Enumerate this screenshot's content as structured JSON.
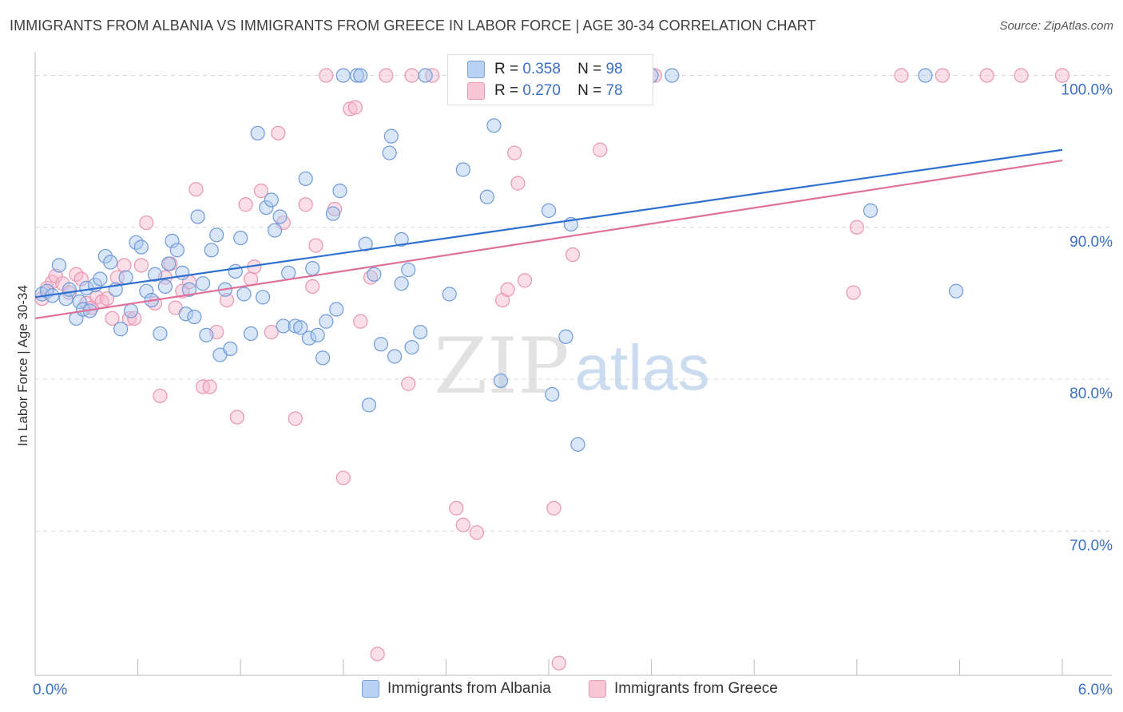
{
  "title": "IMMIGRANTS FROM ALBANIA VS IMMIGRANTS FROM GREECE IN LABOR FORCE | AGE 30-34 CORRELATION CHART",
  "source": "Source: ZipAtlas.com",
  "watermark": {
    "zip": "ZIP",
    "atlas": "atlas"
  },
  "stats": [
    {
      "r_label": "R =",
      "r_value": "0.358",
      "n_label": "N =",
      "n_value": "98"
    },
    {
      "r_label": "R =",
      "r_value": "0.270",
      "n_label": "N =",
      "n_value": "78"
    }
  ],
  "colors": {
    "albania_fill": "#a9c8f0",
    "albania_stroke": "#6f9ad8",
    "albania_line": "#2f6fd0",
    "greece_fill": "#f6b8cb",
    "greece_stroke": "#e995b1",
    "greece_line": "#e0709a",
    "axis_text": "#3a6fc8",
    "grid": "#d9d9d9"
  },
  "chart_data": {
    "type": "scatter",
    "title": "IMMIGRANTS FROM ALBANIA VS IMMIGRANTS FROM GREECE IN LABOR FORCE | AGE 30-34 CORRELATION CHART",
    "xlabel": "",
    "ylabel": "In Labor Force | Age 30-34",
    "xlim": [
      0,
      6
    ],
    "ylim": [
      60.5,
      101.5
    ],
    "x_tick_labels": [
      {
        "value": 0,
        "label": "0.0%"
      },
      {
        "value": 6,
        "label": "6.0%"
      }
    ],
    "y_tick_labels": [
      {
        "value": 70,
        "label": "70.0%"
      },
      {
        "value": 80,
        "label": "80.0%"
      },
      {
        "value": 90,
        "label": "90.0%"
      },
      {
        "value": 100,
        "label": "100.0%"
      }
    ],
    "x_minor_ticks": [
      0.6,
      1.2,
      1.8,
      2.4,
      3.0,
      3.6,
      4.2,
      4.8,
      5.4,
      6.0
    ],
    "legend": [
      "Immigrants from Albania",
      "Immigrants from Greece"
    ],
    "series": [
      {
        "name": "Immigrants from Albania",
        "trend": {
          "x": [
            0,
            6
          ],
          "y": [
            85.4,
            95.1
          ]
        },
        "points": [
          [
            0.04,
            85.6
          ],
          [
            0.07,
            85.8
          ],
          [
            0.1,
            85.5
          ],
          [
            0.14,
            87.5
          ],
          [
            0.18,
            85.3
          ],
          [
            0.2,
            85.9
          ],
          [
            0.24,
            84.0
          ],
          [
            0.26,
            85.1
          ],
          [
            0.28,
            84.6
          ],
          [
            0.3,
            86.0
          ],
          [
            0.32,
            84.5
          ],
          [
            0.35,
            86.2
          ],
          [
            0.38,
            86.6
          ],
          [
            0.41,
            88.1
          ],
          [
            0.44,
            87.7
          ],
          [
            0.47,
            85.9
          ],
          [
            0.5,
            83.3
          ],
          [
            0.53,
            86.7
          ],
          [
            0.56,
            84.5
          ],
          [
            0.59,
            89.0
          ],
          [
            0.62,
            88.7
          ],
          [
            0.65,
            85.8
          ],
          [
            0.68,
            85.2
          ],
          [
            0.7,
            86.9
          ],
          [
            0.73,
            83.0
          ],
          [
            0.76,
            86.1
          ],
          [
            0.78,
            87.6
          ],
          [
            0.8,
            89.1
          ],
          [
            0.83,
            88.5
          ],
          [
            0.86,
            87.0
          ],
          [
            0.88,
            84.3
          ],
          [
            0.9,
            85.9
          ],
          [
            0.93,
            84.1
          ],
          [
            0.95,
            90.7
          ],
          [
            0.98,
            86.3
          ],
          [
            1.0,
            82.9
          ],
          [
            1.03,
            88.5
          ],
          [
            1.06,
            89.5
          ],
          [
            1.08,
            81.6
          ],
          [
            1.11,
            85.9
          ],
          [
            1.14,
            82.0
          ],
          [
            1.17,
            87.1
          ],
          [
            1.2,
            89.3
          ],
          [
            1.22,
            85.6
          ],
          [
            1.26,
            83.0
          ],
          [
            1.3,
            96.2
          ],
          [
            1.33,
            85.4
          ],
          [
            1.35,
            91.3
          ],
          [
            1.38,
            91.8
          ],
          [
            1.4,
            89.8
          ],
          [
            1.43,
            90.7
          ],
          [
            1.45,
            83.5
          ],
          [
            1.48,
            87.0
          ],
          [
            1.52,
            83.5
          ],
          [
            1.55,
            83.4
          ],
          [
            1.58,
            93.2
          ],
          [
            1.6,
            82.7
          ],
          [
            1.62,
            87.3
          ],
          [
            1.65,
            82.9
          ],
          [
            1.68,
            81.4
          ],
          [
            1.7,
            83.8
          ],
          [
            1.74,
            90.9
          ],
          [
            1.76,
            84.6
          ],
          [
            1.78,
            92.4
          ],
          [
            1.8,
            100.0
          ],
          [
            1.88,
            100.0
          ],
          [
            1.9,
            100.0
          ],
          [
            1.93,
            88.9
          ],
          [
            1.95,
            78.3
          ],
          [
            1.98,
            86.9
          ],
          [
            2.02,
            82.3
          ],
          [
            2.08,
            96.0
          ],
          [
            2.07,
            94.9
          ],
          [
            2.1,
            81.5
          ],
          [
            2.14,
            89.2
          ],
          [
            2.14,
            86.3
          ],
          [
            2.18,
            87.2
          ],
          [
            2.2,
            82.1
          ],
          [
            2.25,
            83.1
          ],
          [
            2.28,
            100.0
          ],
          [
            2.42,
            85.6
          ],
          [
            2.5,
            93.8
          ],
          [
            2.6,
            100.0
          ],
          [
            2.64,
            92.0
          ],
          [
            2.68,
            96.7
          ],
          [
            2.72,
            79.9
          ],
          [
            2.76,
            100.0
          ],
          [
            3.0,
            91.1
          ],
          [
            3.02,
            79.0
          ],
          [
            3.1,
            82.8
          ],
          [
            3.13,
            90.2
          ],
          [
            3.17,
            75.7
          ],
          [
            3.33,
            100.0
          ],
          [
            3.6,
            100.0
          ],
          [
            3.72,
            100.0
          ],
          [
            4.88,
            91.1
          ],
          [
            5.2,
            100.0
          ],
          [
            5.38,
            85.8
          ]
        ]
      },
      {
        "name": "Immigrants from Greece",
        "trend": {
          "x": [
            0,
            6
          ],
          "y": [
            84.0,
            94.4
          ]
        },
        "points": [
          [
            0.04,
            85.3
          ],
          [
            0.07,
            86.0
          ],
          [
            0.1,
            86.4
          ],
          [
            0.12,
            86.8
          ],
          [
            0.16,
            86.3
          ],
          [
            0.2,
            85.7
          ],
          [
            0.24,
            86.9
          ],
          [
            0.27,
            86.6
          ],
          [
            0.3,
            85.0
          ],
          [
            0.33,
            84.7
          ],
          [
            0.36,
            85.4
          ],
          [
            0.39,
            85.1
          ],
          [
            0.42,
            85.3
          ],
          [
            0.45,
            84.0
          ],
          [
            0.48,
            86.7
          ],
          [
            0.52,
            87.5
          ],
          [
            0.55,
            84.0
          ],
          [
            0.58,
            84.0
          ],
          [
            0.62,
            87.5
          ],
          [
            0.65,
            90.3
          ],
          [
            0.7,
            85.0
          ],
          [
            0.73,
            78.9
          ],
          [
            0.76,
            86.7
          ],
          [
            0.79,
            87.6
          ],
          [
            0.82,
            84.7
          ],
          [
            0.86,
            85.8
          ],
          [
            0.9,
            86.4
          ],
          [
            0.94,
            92.5
          ],
          [
            0.98,
            79.5
          ],
          [
            1.02,
            79.5
          ],
          [
            1.06,
            83.1
          ],
          [
            1.12,
            85.2
          ],
          [
            1.18,
            77.5
          ],
          [
            1.23,
            91.5
          ],
          [
            1.26,
            86.6
          ],
          [
            1.28,
            87.4
          ],
          [
            1.32,
            92.4
          ],
          [
            1.38,
            83.1
          ],
          [
            1.42,
            96.2
          ],
          [
            1.45,
            90.3
          ],
          [
            1.52,
            77.4
          ],
          [
            1.58,
            91.5
          ],
          [
            1.62,
            86.1
          ],
          [
            1.64,
            88.8
          ],
          [
            1.7,
            100.0
          ],
          [
            1.75,
            91.2
          ],
          [
            1.8,
            73.5
          ],
          [
            1.84,
            97.8
          ],
          [
            1.87,
            97.9
          ],
          [
            1.9,
            83.8
          ],
          [
            1.96,
            86.7
          ],
          [
            2.0,
            61.9
          ],
          [
            2.05,
            100.0
          ],
          [
            2.18,
            79.7
          ],
          [
            2.2,
            100.0
          ],
          [
            2.32,
            100.0
          ],
          [
            2.46,
            71.5
          ],
          [
            2.5,
            70.4
          ],
          [
            2.58,
            69.9
          ],
          [
            2.66,
            100.0
          ],
          [
            2.73,
            85.2
          ],
          [
            2.76,
            85.9
          ],
          [
            2.8,
            94.9
          ],
          [
            2.82,
            92.9
          ],
          [
            2.86,
            86.5
          ],
          [
            3.03,
            71.5
          ],
          [
            3.06,
            61.3
          ],
          [
            3.14,
            88.2
          ],
          [
            3.3,
            95.1
          ],
          [
            3.54,
            100.0
          ],
          [
            3.62,
            100.0
          ],
          [
            4.78,
            85.7
          ],
          [
            4.8,
            90.0
          ],
          [
            5.06,
            100.0
          ],
          [
            5.3,
            100.0
          ],
          [
            5.56,
            100.0
          ],
          [
            5.76,
            100.0
          ],
          [
            6.0,
            100.0
          ]
        ]
      }
    ]
  }
}
